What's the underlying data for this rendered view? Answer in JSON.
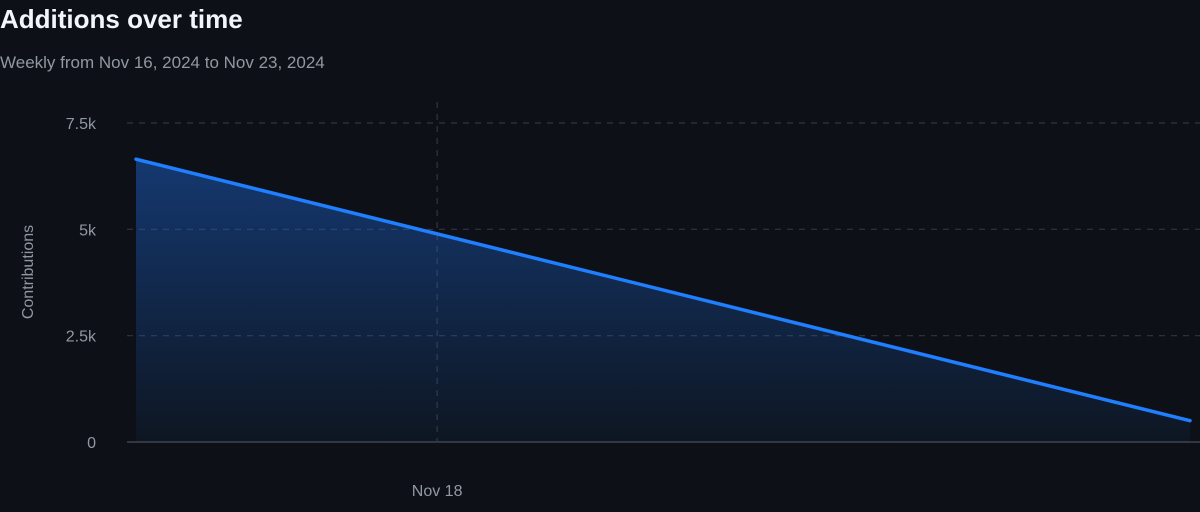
{
  "chart_data": {
    "type": "area",
    "title": "Additions over time",
    "subtitle": "Weekly from Nov 16, 2024 to Nov 23, 2024",
    "xlabel": "",
    "ylabel": "Contributions",
    "x_ticks": [
      {
        "label": "Nov 18",
        "day": 2
      }
    ],
    "y_ticks": [
      {
        "label": "0",
        "value": 0
      },
      {
        "label": "2.5k",
        "value": 2500
      },
      {
        "label": "5k",
        "value": 5000
      },
      {
        "label": "7.5k",
        "value": 7500
      }
    ],
    "x_range_days": [
      0,
      7
    ],
    "ylim": [
      0,
      7500
    ],
    "grid": true,
    "series": [
      {
        "name": "Additions",
        "color": "#1f7fff",
        "points": [
          {
            "date": "Nov 16, 2024",
            "day": 0,
            "value": 6650
          },
          {
            "date": "Nov 23, 2024",
            "day": 7,
            "value": 500
          }
        ]
      }
    ]
  }
}
